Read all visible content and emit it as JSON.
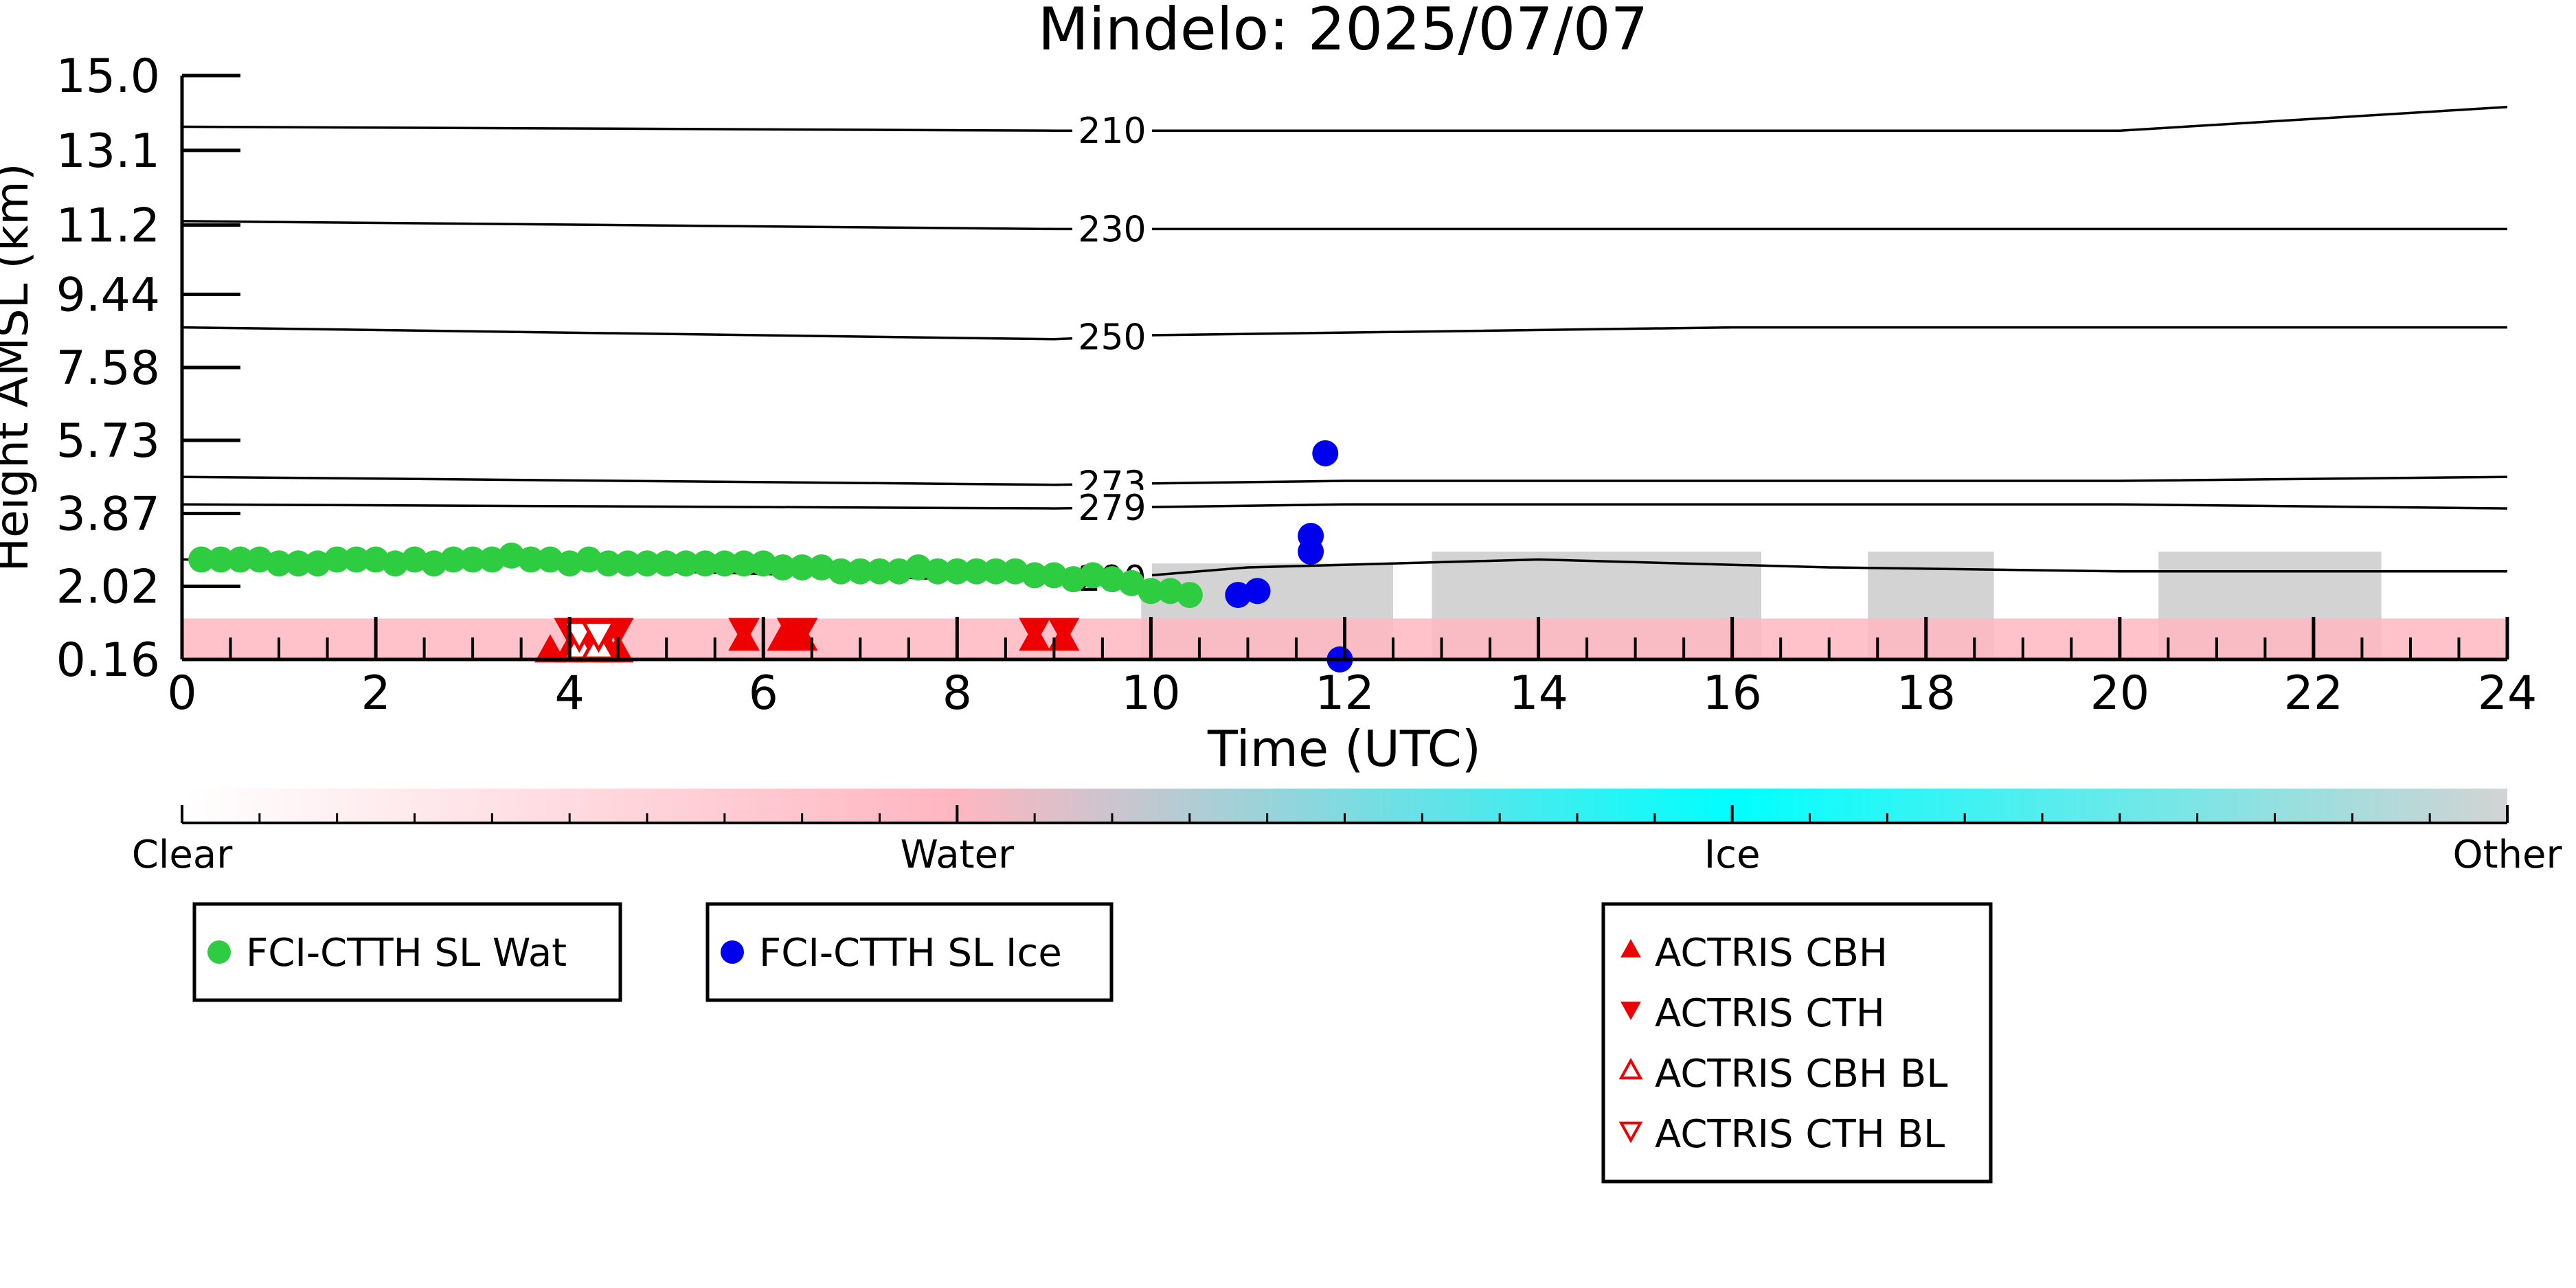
{
  "chart_data": {
    "type": "scatter",
    "title": "Mindelo: 2025/07/07",
    "xlabel": "Time (UTC)",
    "ylabel": "Height AMSL (km)",
    "xlim": [
      0,
      24
    ],
    "x_ticks": [
      0,
      2,
      4,
      6,
      8,
      10,
      12,
      14,
      16,
      18,
      20,
      22,
      24
    ],
    "y_ticks": [
      "0.16",
      "2.02",
      "3.87",
      "5.73",
      "7.58",
      "9.44",
      "11.2",
      "13.1",
      "15.0"
    ],
    "ylim": [
      0.16,
      15.0
    ],
    "grid": false,
    "background_classification": {
      "colorbar_labels": [
        "Clear",
        "Water",
        "Ice",
        "Other"
      ],
      "colors": {
        "clear": "#ffffff",
        "water": "#ffb6c1",
        "ice": "#00ffff",
        "other": "#d3d3d3"
      },
      "water_layer_top_km": 1.2,
      "other_blocks": [
        {
          "start": 9.9,
          "end": 12.5,
          "top_km": 2.6
        },
        {
          "start": 12.9,
          "end": 16.3,
          "top_km": 2.9
        },
        {
          "start": 17.4,
          "end": 18.7,
          "top_km": 2.9
        },
        {
          "start": 20.4,
          "end": 22.7,
          "top_km": 2.9
        }
      ]
    },
    "temperature_contours": [
      {
        "label": "210",
        "x": [
          0,
          9,
          12,
          20,
          24
        ],
        "y": [
          13.7,
          13.6,
          13.6,
          13.6,
          14.2
        ]
      },
      {
        "label": "230",
        "x": [
          0,
          9,
          12,
          20,
          24
        ],
        "y": [
          11.3,
          11.1,
          11.1,
          11.1,
          11.1
        ]
      },
      {
        "label": "250",
        "x": [
          0,
          9,
          10,
          16,
          24
        ],
        "y": [
          8.6,
          8.3,
          8.4,
          8.6,
          8.6
        ]
      },
      {
        "label": "273",
        "x": [
          0,
          9,
          12,
          20,
          24
        ],
        "y": [
          4.8,
          4.6,
          4.7,
          4.7,
          4.8
        ]
      },
      {
        "label": "279",
        "x": [
          0,
          9,
          12,
          20,
          24
        ],
        "y": [
          4.1,
          4.0,
          4.1,
          4.1,
          4.0
        ]
      },
      {
        "label": "290",
        "x": [
          0,
          3,
          5,
          8,
          9.5,
          11,
          14,
          17,
          20,
          24
        ],
        "y": [
          2.7,
          2.7,
          2.4,
          2.2,
          2.2,
          2.5,
          2.7,
          2.5,
          2.4,
          2.4
        ]
      }
    ],
    "contour_label_x": 9.6,
    "series": [
      {
        "name": "FCI-CTTH SL Wat",
        "color": "#2ecc40",
        "marker": "circle",
        "x": [
          0.2,
          0.4,
          0.6,
          0.8,
          1.0,
          1.2,
          1.4,
          1.6,
          1.8,
          2.0,
          2.2,
          2.4,
          2.6,
          2.8,
          3.0,
          3.2,
          3.4,
          3.6,
          3.8,
          4.0,
          4.2,
          4.4,
          4.6,
          4.8,
          5.0,
          5.2,
          5.4,
          5.6,
          5.8,
          6.0,
          6.2,
          6.4,
          6.6,
          6.8,
          7.0,
          7.2,
          7.4,
          7.6,
          7.8,
          8.0,
          8.2,
          8.4,
          8.6,
          8.8,
          9.0,
          9.2,
          9.4,
          9.6,
          9.8,
          10.0,
          10.2,
          10.4
        ],
        "y": [
          2.7,
          2.7,
          2.7,
          2.7,
          2.6,
          2.6,
          2.6,
          2.7,
          2.7,
          2.7,
          2.6,
          2.7,
          2.6,
          2.7,
          2.7,
          2.7,
          2.8,
          2.7,
          2.7,
          2.6,
          2.7,
          2.6,
          2.6,
          2.6,
          2.6,
          2.6,
          2.6,
          2.6,
          2.6,
          2.6,
          2.5,
          2.5,
          2.5,
          2.4,
          2.4,
          2.4,
          2.4,
          2.5,
          2.4,
          2.4,
          2.4,
          2.4,
          2.4,
          2.3,
          2.3,
          2.2,
          2.3,
          2.2,
          2.1,
          1.9,
          1.9,
          1.8
        ]
      },
      {
        "name": "FCI-CTTH SL Ice",
        "color": "#0000ee",
        "marker": "circle",
        "x": [
          10.9,
          11.1,
          11.65,
          11.65,
          11.8,
          11.95
        ],
        "y": [
          1.8,
          1.9,
          2.9,
          3.3,
          5.4,
          0.16
        ]
      },
      {
        "name": "ACTRIS CBH",
        "color": "#ee0000",
        "marker": "triangle-up-filled",
        "x": [
          3.8,
          4.0,
          4.2,
          4.4,
          4.5,
          5.8,
          6.2,
          6.4,
          8.8,
          9.1
        ],
        "y": [
          0.4,
          0.4,
          0.4,
          0.4,
          0.4,
          0.7,
          0.7,
          0.7,
          0.7,
          0.7
        ]
      },
      {
        "name": "ACTRIS CTH",
        "color": "#ee0000",
        "marker": "triangle-down-filled",
        "x": [
          4.0,
          4.2,
          4.4,
          4.5,
          5.8,
          6.3,
          6.4,
          8.8,
          9.1
        ],
        "y": [
          0.9,
          0.9,
          0.9,
          0.9,
          0.9,
          0.9,
          0.9,
          0.9,
          0.9
        ]
      },
      {
        "name": "ACTRIS CBH BL",
        "color": "#ee0000",
        "marker": "triangle-up-open",
        "x": [
          4.1,
          4.3
        ],
        "y": [
          0.5,
          0.5
        ]
      },
      {
        "name": "ACTRIS CTH BL",
        "color": "#ee0000",
        "marker": "triangle-down-open",
        "x": [
          4.1,
          4.3
        ],
        "y": [
          0.8,
          0.8
        ]
      }
    ],
    "legends": [
      [
        "FCI-CTTH SL Wat"
      ],
      [
        "FCI-CTTH SL Ice"
      ],
      [
        "ACTRIS CBH",
        "ACTRIS CTH",
        "ACTRIS CBH BL",
        "ACTRIS CTH BL"
      ]
    ]
  }
}
